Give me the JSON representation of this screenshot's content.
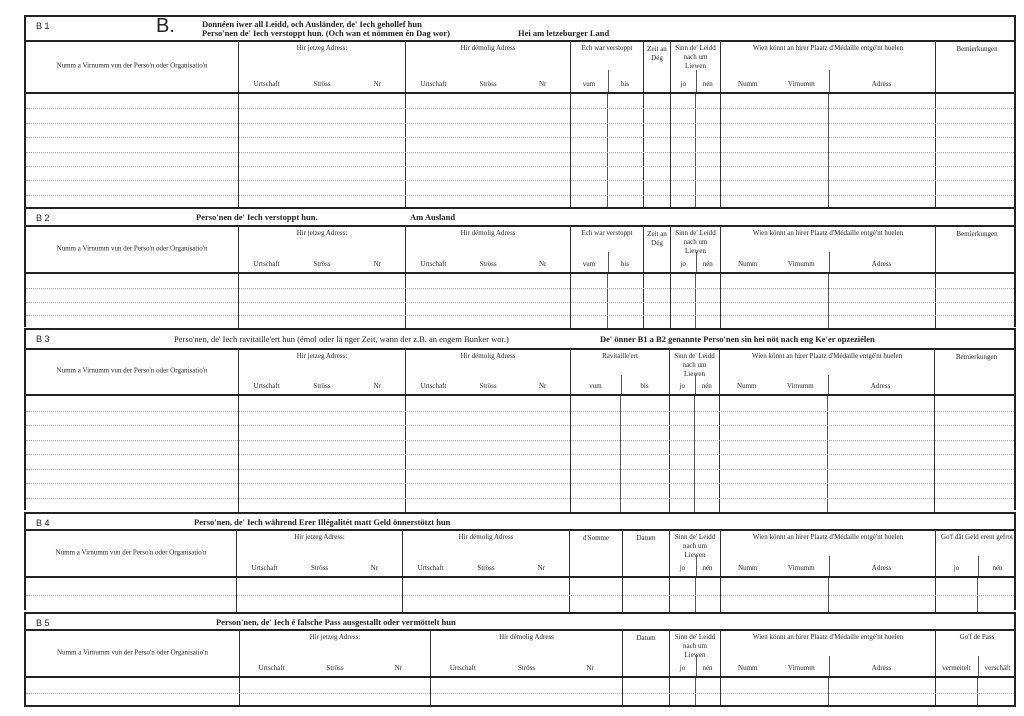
{
  "document": {
    "big_letter": "B.",
    "sections": [
      {
        "code": "B 1",
        "title_lines": [
          {
            "text": "Donnéen iwer all Leidd, och Ausländer, de' Iech gehollef hun"
          },
          {
            "text": "Perso'nen de' Iech verstoppt hun. (Och wan et nömmen én Dag wor)"
          },
          {
            "text": "Hei am letzeburger Land"
          }
        ],
        "columns": [
          {
            "label": "Numm a Virnumm vun der Perso'n oder Organisatio'n",
            "subs": []
          },
          {
            "label": "Hir jetzeg Adress:",
            "subs": [
              "Urtschaft",
              "Ströss",
              "Nr"
            ]
          },
          {
            "label": "Hir démolig Adress",
            "subs": [
              "Urtschaft",
              "Ströss",
              "Nr"
            ]
          },
          {
            "label": "Ech war verstoppt",
            "subs": [
              "vum",
              "bis"
            ]
          },
          {
            "label": "Zeit an Dég",
            "subs": []
          },
          {
            "label": "Sinn de' Leidd nach um Liewen",
            "subs": [
              "jo",
              "nén"
            ]
          },
          {
            "label": "Wien könnt an hirer Plaatz d'Médaille entgé'nt huelen",
            "subs": [
              "Numm",
              "Virnumm",
              "Adress"
            ]
          },
          {
            "label": "Bemierkungen",
            "subs": []
          }
        ]
      },
      {
        "code": "B 2",
        "title_lines": [
          {
            "text": "Perso'nen de' Iech verstoppt hun."
          },
          {
            "text": "Am Ausland"
          }
        ],
        "columns": [
          {
            "label": "Numm a Virnumm vun der Perso'n oder Organisatio'n",
            "subs": []
          },
          {
            "label": "Hir jetzeg Adress:",
            "subs": [
              "Urtschaft",
              "Ströss",
              "Nr"
            ]
          },
          {
            "label": "Hir démolig Adress",
            "subs": [
              "Urtschaft",
              "Ströss",
              "Nr"
            ]
          },
          {
            "label": "Ech war verstoppt",
            "subs": [
              "vum",
              "bis"
            ]
          },
          {
            "label": "Zeit an Dég",
            "subs": []
          },
          {
            "label": "Sinn de' Leidd nach um Liewen",
            "subs": [
              "jo",
              "nén"
            ]
          },
          {
            "label": "Wien könnt an hirer Plaatz d'Médaille entgé'nt huelen",
            "subs": [
              "Numm",
              "Virnumm",
              "Adress"
            ]
          },
          {
            "label": "Bemierkungen",
            "subs": []
          }
        ]
      },
      {
        "code": "B 3",
        "title_lines": [
          {
            "text": "Perso'nen, de' Iech ravitaille'ert hun (émol oder lä nger Zeit, wann der z.B. an engem Bunker wor.)"
          },
          {
            "text": "De' önner B1 a B2 genannte Perso'nen sin hei nöt nach eng Ke'er opzeziélen"
          }
        ],
        "columns": [
          {
            "label": "Numm a Virnumm vun der Perso'n oder Organisatio'n",
            "subs": []
          },
          {
            "label": "Hir jetzeg Adress:",
            "subs": [
              "Urtschaft",
              "Ströss",
              "Nr"
            ]
          },
          {
            "label": "Hir démolig Adress",
            "subs": [
              "Urtschaft",
              "Ströss",
              "Nr"
            ]
          },
          {
            "label": "Ravitaille'ert",
            "subs": [
              "vum",
              "bis"
            ]
          },
          {
            "label": "Sinn de' Leidd nach um Liewen",
            "subs": [
              "jo",
              "nén"
            ]
          },
          {
            "label": "Wien könnt an hirer Plaatz d'Médaille entgé'nt huelen",
            "subs": [
              "Numm",
              "Virnumm",
              "Adress"
            ]
          },
          {
            "label": "Bemierkungen",
            "subs": []
          }
        ]
      },
      {
        "code": "B 4",
        "title_lines": [
          {
            "text": "Perso'nen, de' Iech während Erer Illégalitét matt Geld önnerstötzt hun"
          }
        ],
        "columns": [
          {
            "label": "Numm a Virnumm vun der Perso'n oder Organisatio'n",
            "subs": []
          },
          {
            "label": "Hir jetzeg Adress:",
            "subs": [
              "Urtschaft",
              "Ströss",
              "Nr"
            ]
          },
          {
            "label": "Hir démolig Adress",
            "subs": [
              "Urtschaft",
              "Ströss",
              "Nr"
            ]
          },
          {
            "label": "d'Somme",
            "subs": []
          },
          {
            "label": "Datum",
            "subs": []
          },
          {
            "label": "Sinn de' Leidd nach um Liewen",
            "subs": [
              "jo",
              "nén"
            ]
          },
          {
            "label": "Wien könnt an hirer Plaatz d'Médaille entgé'nt huelen",
            "subs": [
              "Numm",
              "Virnumm",
              "Adress"
            ]
          },
          {
            "label": "Go'f dât Geld erem gefrot",
            "subs": [
              "jo",
              "nén"
            ]
          }
        ]
      },
      {
        "code": "B 5",
        "title_lines": [
          {
            "text": "Person'nen, de' Iech é falsche Pass ausgestallt oder vermöttelt hun"
          }
        ],
        "columns": [
          {
            "label": "Numm a Virnumm vun der Perso'n oder Organisatio'n",
            "subs": []
          },
          {
            "label": "Hir jetzeg Adress:",
            "subs": [
              "Urtschaft",
              "Ströss",
              "Nr"
            ]
          },
          {
            "label": "Hir démolig Adress",
            "subs": [
              "Urtschaft",
              "Ströss",
              "Nr"
            ]
          },
          {
            "label": "Datum",
            "subs": []
          },
          {
            "label": "Sinn de' Leidd nach um Liewen",
            "subs": [
              "jo",
              "nén"
            ]
          },
          {
            "label": "Wien könnt an hirer Plaatz d'Médaille entgé'nt huelen",
            "subs": [
              "Numm",
              "Virnumm",
              "Adress"
            ]
          },
          {
            "label": "Go'f de Pass",
            "subs": [
              "vermeitelt",
              "verschäft"
            ]
          }
        ]
      }
    ]
  }
}
